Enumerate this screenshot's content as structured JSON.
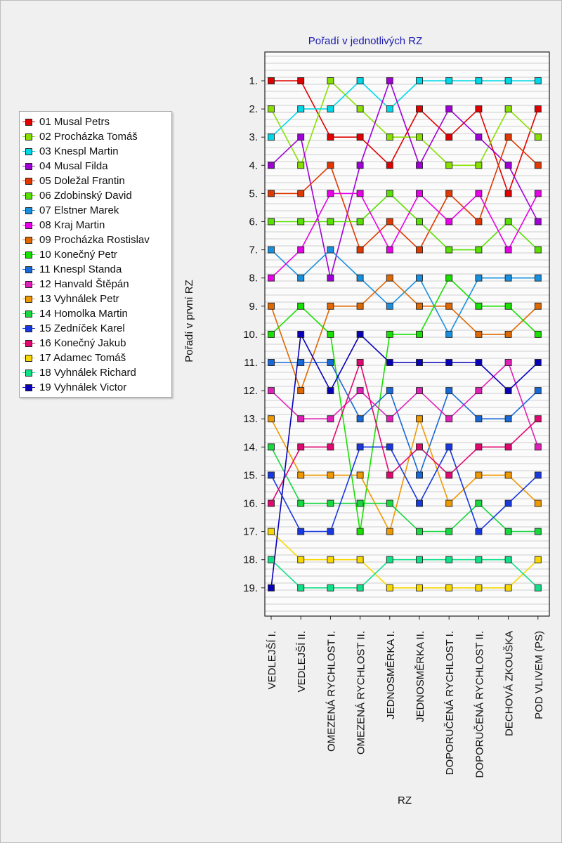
{
  "chart_data": {
    "type": "line",
    "title": "Pořadí v jednotlivých RZ",
    "xlabel": "RZ",
    "ylabel": "Pořadí v první RZ",
    "categories": [
      "VEDLEJŠÍ I.",
      "VEDLEJŠÍ II.",
      "OMEZENÁ RYCHLOST I.",
      "OMEZENÁ RYCHLOST II.",
      "JEDNOSMĚRKA I.",
      "JEDNOSMĚRKA II.",
      "DOPORUČENÁ RYCHLOST I.",
      "DOPORUČENÁ RYCHLOST II.",
      "DECHOVÁ ZKOUŠKA",
      "POD VLIVEM (PS)"
    ],
    "y_ticks": [
      "1.",
      "2.",
      "3.",
      "4.",
      "5.",
      "6.",
      "7.",
      "8.",
      "9.",
      "10.",
      "11.",
      "12.",
      "13.",
      "14.",
      "15.",
      "16.",
      "17.",
      "18.",
      "19."
    ],
    "ylim": [
      0,
      20
    ],
    "y_inverted": true,
    "grid": true,
    "legend_position": "left",
    "series": [
      {
        "name": "01 Musal Petrs",
        "color": "#e00000",
        "values": [
          1,
          1,
          3,
          3,
          4,
          2,
          3,
          2,
          5,
          2
        ]
      },
      {
        "name": "02 Procházka Tomáš",
        "color": "#88e000",
        "values": [
          2,
          4,
          1,
          2,
          3,
          3,
          4,
          4,
          2,
          3
        ]
      },
      {
        "name": "03 Knespl Martin",
        "color": "#00d8e8",
        "values": [
          3,
          2,
          2,
          1,
          2,
          1,
          1,
          1,
          1,
          1
        ]
      },
      {
        "name": "04 Musal Filda",
        "color": "#a000d8",
        "values": [
          4,
          3,
          8,
          4,
          1,
          4,
          2,
          3,
          4,
          6
        ]
      },
      {
        "name": "05 Doležal Frantin",
        "color": "#e03800",
        "values": [
          5,
          5,
          4,
          7,
          6,
          7,
          5,
          6,
          3,
          4
        ]
      },
      {
        "name": "06 Zdobinský David",
        "color": "#58e000",
        "values": [
          6,
          6,
          6,
          6,
          5,
          6,
          7,
          7,
          6,
          7
        ]
      },
      {
        "name": "07 Elstner Marek",
        "color": "#1890e0",
        "values": [
          7,
          8,
          7,
          8,
          9,
          8,
          10,
          8,
          8,
          8
        ]
      },
      {
        "name": "08 Kraj Martin",
        "color": "#e800e8",
        "values": [
          8,
          7,
          5,
          5,
          7,
          5,
          6,
          5,
          7,
          5
        ]
      },
      {
        "name": "09 Procházka Rostislav",
        "color": "#e06800",
        "values": [
          9,
          12,
          9,
          9,
          8,
          9,
          9,
          10,
          10,
          9
        ]
      },
      {
        "name": "10 Konečný Petr",
        "color": "#18e000",
        "values": [
          10,
          9,
          10,
          17,
          10,
          10,
          8,
          9,
          9,
          10
        ]
      },
      {
        "name": "11 Knespl Standa",
        "color": "#1868d8",
        "values": [
          11,
          11,
          11,
          13,
          12,
          15,
          12,
          13,
          13,
          12
        ]
      },
      {
        "name": "12 Hanvald Štěpán",
        "color": "#e020b8",
        "values": [
          12,
          13,
          13,
          12,
          13,
          12,
          13,
          12,
          11,
          14
        ]
      },
      {
        "name": "13 Vyhnálek Petr",
        "color": "#f09800",
        "values": [
          13,
          15,
          15,
          15,
          17,
          13,
          16,
          15,
          15,
          16
        ]
      },
      {
        "name": "14 Homolka Martin",
        "color": "#18d840",
        "values": [
          14,
          16,
          16,
          16,
          16,
          17,
          17,
          16,
          17,
          17
        ]
      },
      {
        "name": "15 Zedníček Karel",
        "color": "#1838e0",
        "values": [
          15,
          17,
          17,
          14,
          14,
          16,
          14,
          17,
          16,
          15
        ]
      },
      {
        "name": "16 Konečný Jakub",
        "color": "#e00870",
        "values": [
          16,
          14,
          14,
          11,
          15,
          14,
          15,
          14,
          14,
          13
        ]
      },
      {
        "name": "17 Adamec Tomáš",
        "color": "#f8d800",
        "values": [
          17,
          18,
          18,
          18,
          19,
          19,
          19,
          19,
          19,
          18
        ]
      },
      {
        "name": "18 Vyhnálek Richard",
        "color": "#10e088",
        "values": [
          18,
          19,
          19,
          19,
          18,
          18,
          18,
          18,
          18,
          19
        ]
      },
      {
        "name": "19 Vyhnálek Victor",
        "color": "#0800b8",
        "values": [
          19,
          10,
          12,
          10,
          11,
          11,
          11,
          11,
          12,
          11
        ]
      }
    ]
  }
}
